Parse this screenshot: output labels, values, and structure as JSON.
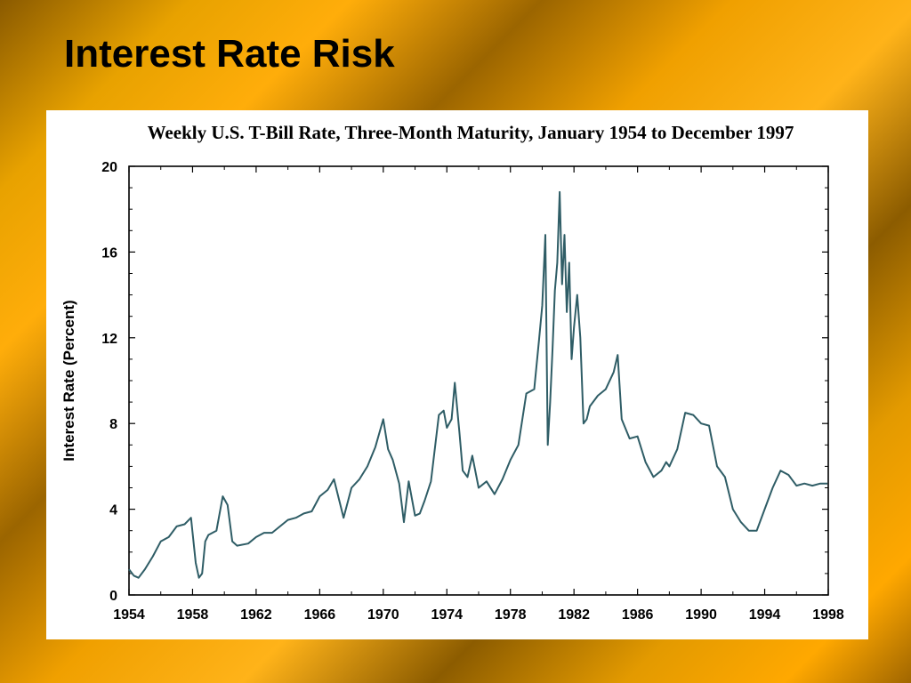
{
  "slide": {
    "title": "Interest Rate Risk"
  },
  "colors": {
    "series_line": "#2f5d66",
    "background_gold": "#f0a000",
    "panel": "#ffffff"
  },
  "chart_data": {
    "type": "line",
    "title": "Weekly U.S. T-Bill Rate, Three-Month Maturity, January 1954 to December 1997",
    "xlabel": "",
    "ylabel": "Interest Rate (Percent)",
    "xlim": [
      1954,
      1998
    ],
    "ylim": [
      0,
      20
    ],
    "x_ticks": [
      "1954",
      "1958",
      "1962",
      "1966",
      "1970",
      "1974",
      "1978",
      "1982",
      "1986",
      "1990",
      "1994",
      "1998"
    ],
    "y_ticks": [
      "0",
      "4",
      "8",
      "12",
      "16",
      "20"
    ],
    "grid": false,
    "series": [
      {
        "name": "",
        "x": [
          1954.0,
          1954.3,
          1954.6,
          1955.0,
          1955.5,
          1956.0,
          1956.5,
          1957.0,
          1957.5,
          1957.9,
          1958.2,
          1958.4,
          1958.6,
          1958.8,
          1959.0,
          1959.5,
          1959.9,
          1960.2,
          1960.5,
          1960.8,
          1961.5,
          1962.0,
          1962.5,
          1963.0,
          1963.5,
          1964.0,
          1964.5,
          1965.0,
          1965.5,
          1966.0,
          1966.5,
          1966.9,
          1967.2,
          1967.5,
          1968.0,
          1968.5,
          1969.0,
          1969.5,
          1970.0,
          1970.3,
          1970.6,
          1971.0,
          1971.3,
          1971.6,
          1972.0,
          1972.3,
          1972.6,
          1973.0,
          1973.5,
          1973.8,
          1974.0,
          1974.3,
          1974.5,
          1974.8,
          1975.0,
          1975.3,
          1975.6,
          1976.0,
          1976.5,
          1977.0,
          1977.5,
          1978.0,
          1978.5,
          1979.0,
          1979.5,
          1979.8,
          1980.0,
          1980.2,
          1980.35,
          1980.5,
          1980.65,
          1980.8,
          1980.95,
          1981.1,
          1981.25,
          1981.4,
          1981.55,
          1981.7,
          1981.85,
          1982.0,
          1982.2,
          1982.4,
          1982.6,
          1982.8,
          1983.0,
          1983.5,
          1984.0,
          1984.5,
          1984.75,
          1985.0,
          1985.5,
          1986.0,
          1986.5,
          1987.0,
          1987.5,
          1987.8,
          1988.0,
          1988.5,
          1989.0,
          1989.5,
          1990.0,
          1990.5,
          1991.0,
          1991.5,
          1992.0,
          1992.5,
          1993.0,
          1993.5,
          1994.0,
          1994.5,
          1995.0,
          1995.5,
          1996.0,
          1996.5,
          1997.0,
          1997.5,
          1997.95
        ],
        "y": [
          1.2,
          0.9,
          0.8,
          1.2,
          1.8,
          2.5,
          2.7,
          3.2,
          3.3,
          3.6,
          1.5,
          0.8,
          1.0,
          2.5,
          2.8,
          3.0,
          4.6,
          4.2,
          2.5,
          2.3,
          2.4,
          2.7,
          2.9,
          2.9,
          3.2,
          3.5,
          3.6,
          3.8,
          3.9,
          4.6,
          4.9,
          5.4,
          4.5,
          3.6,
          5.0,
          5.4,
          6.0,
          6.9,
          8.2,
          6.8,
          6.3,
          5.2,
          3.4,
          5.3,
          3.7,
          3.8,
          4.4,
          5.3,
          8.4,
          8.6,
          7.8,
          8.2,
          9.9,
          7.5,
          5.8,
          5.5,
          6.5,
          5.0,
          5.3,
          4.7,
          5.4,
          6.3,
          7.0,
          9.4,
          9.6,
          11.9,
          13.5,
          16.8,
          7.0,
          9.0,
          11.5,
          14.2,
          15.5,
          18.8,
          14.5,
          16.8,
          13.2,
          15.5,
          11.0,
          12.5,
          14.0,
          12.0,
          8.0,
          8.2,
          8.8,
          9.3,
          9.6,
          10.4,
          11.2,
          8.2,
          7.3,
          7.4,
          6.2,
          5.5,
          5.8,
          6.2,
          6.0,
          6.8,
          8.5,
          8.4,
          8.0,
          7.9,
          6.0,
          5.5,
          4.0,
          3.4,
          3.0,
          3.0,
          4.0,
          5.0,
          5.8,
          5.6,
          5.1,
          5.2,
          5.1,
          5.2,
          5.2
        ]
      }
    ]
  }
}
